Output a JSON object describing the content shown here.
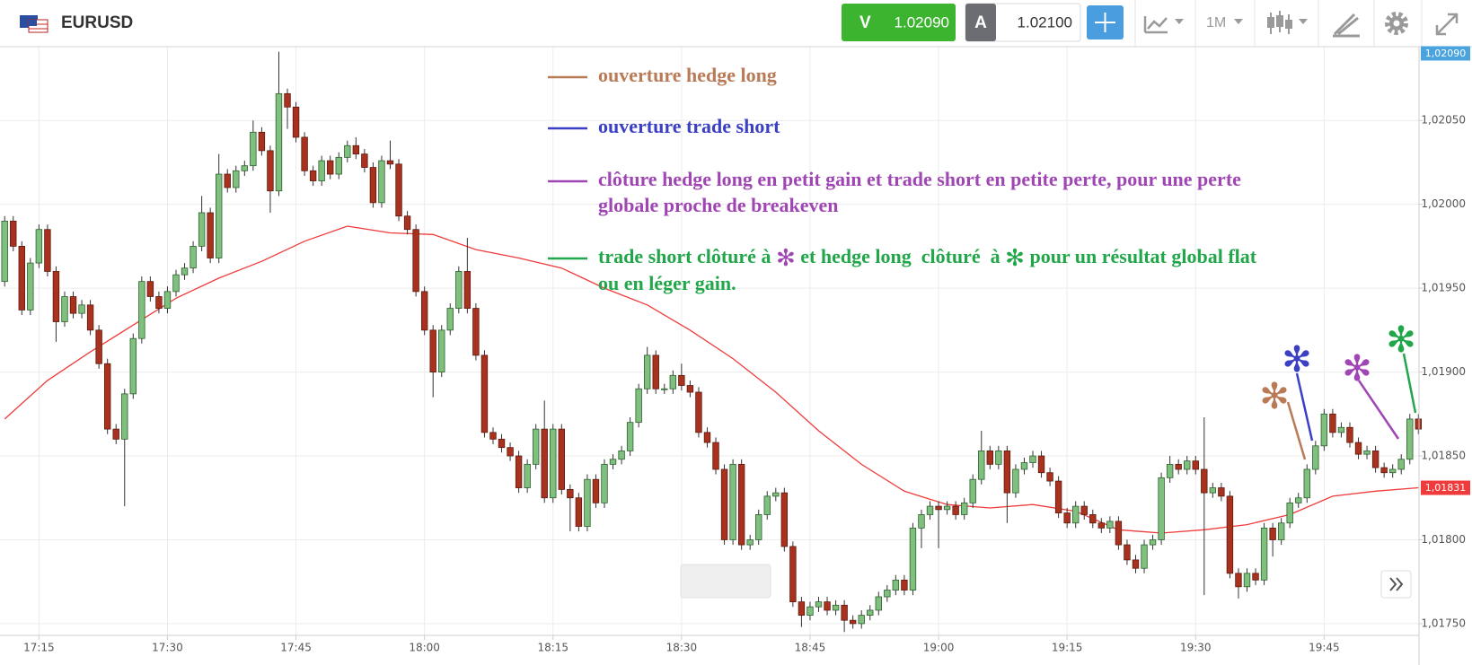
{
  "header": {
    "symbol": "EURUSD",
    "sell_label": "V",
    "sell_price": "1.02090",
    "buy_label": "A",
    "buy_price": "1.02100",
    "timeframe": "1M"
  },
  "chart_data": {
    "type": "candlestick",
    "up_color": "#7fc07f",
    "down_color": "#a9321f",
    "grid": true,
    "marker": "✻",
    "x": [
      "17:11",
      "17:12",
      "17:13",
      "17:14",
      "17:15",
      "17:16",
      "17:17",
      "17:18",
      "17:19",
      "17:20",
      "17:21",
      "17:22",
      "17:23",
      "17:24",
      "17:25",
      "17:26",
      "17:27",
      "17:28",
      "17:29",
      "17:30",
      "17:31",
      "17:32",
      "17:33",
      "17:34",
      "17:35",
      "17:36",
      "17:37",
      "17:38",
      "17:39",
      "17:40",
      "17:41",
      "17:42",
      "17:43",
      "17:44",
      "17:45",
      "17:46",
      "17:47",
      "17:48",
      "17:49",
      "17:50",
      "17:51",
      "17:52",
      "17:53",
      "17:54",
      "17:55",
      "17:56",
      "17:57",
      "17:58",
      "17:59",
      "18:00",
      "18:01",
      "18:02",
      "18:03",
      "18:04",
      "18:05",
      "18:06",
      "18:07",
      "18:08",
      "18:09",
      "18:10",
      "18:11",
      "18:12",
      "18:13",
      "18:14",
      "18:15",
      "18:16",
      "18:17",
      "18:18",
      "18:19",
      "18:20",
      "18:21",
      "18:22",
      "18:23",
      "18:24",
      "18:25",
      "18:26",
      "18:27",
      "18:28",
      "18:29",
      "18:30",
      "18:31",
      "18:32",
      "18:33",
      "18:34",
      "18:35",
      "18:36",
      "18:37",
      "18:38",
      "18:39",
      "18:40",
      "18:41",
      "18:42",
      "18:43",
      "18:44",
      "18:45",
      "18:46",
      "18:47",
      "18:48",
      "18:49",
      "18:50",
      "18:51",
      "18:52",
      "18:53",
      "18:54",
      "18:55",
      "18:56",
      "18:57",
      "18:58",
      "18:59",
      "19:00",
      "19:01",
      "19:02",
      "19:03",
      "19:04",
      "19:05",
      "19:06",
      "19:07",
      "19:08",
      "19:09",
      "19:10",
      "19:11",
      "19:12",
      "19:13",
      "19:14",
      "19:15",
      "19:16",
      "19:17",
      "19:18",
      "19:19",
      "19:20",
      "19:21",
      "19:22",
      "19:23",
      "19:24",
      "19:25",
      "19:26",
      "19:27",
      "19:28",
      "19:29",
      "19:30",
      "19:31",
      "19:32",
      "19:33",
      "19:34",
      "19:35",
      "19:36",
      "19:37",
      "19:38",
      "19:39",
      "19:40",
      "19:41",
      "19:42",
      "19:43",
      "19:44",
      "19:45",
      "19:46",
      "19:47",
      "19:48",
      "19:49",
      "19:50",
      "19:51",
      "19:52",
      "19:53",
      "19:54",
      "19:55",
      "19:56"
    ],
    "open": [
      1.01954,
      1.0199,
      1.01975,
      1.01937,
      1.01965,
      1.01985,
      1.0196,
      1.0193,
      1.01945,
      1.01935,
      1.0194,
      1.01925,
      1.01905,
      1.01866,
      1.0186,
      1.01887,
      1.0192,
      1.01954,
      1.01945,
      1.01938,
      1.01948,
      1.01958,
      1.01962,
      1.01975,
      1.01995,
      1.01968,
      1.02018,
      1.0201,
      1.0202,
      1.02023,
      1.02043,
      1.02032,
      1.02008,
      1.02066,
      1.02058,
      1.0204,
      1.0202,
      1.02014,
      1.02026,
      1.02018,
      1.02028,
      1.02035,
      1.0203,
      1.02022,
      1.02001,
      1.02026,
      1.02024,
      1.01993,
      1.01985,
      1.01948,
      1.01925,
      1.019,
      1.01925,
      1.01938,
      1.0196,
      1.01938,
      1.0191,
      1.01864,
      1.0186,
      1.01855,
      1.0185,
      1.01831,
      1.01845,
      1.01866,
      1.01825,
      1.01866,
      1.0183,
      1.01825,
      1.01808,
      1.01836,
      1.01822,
      1.01845,
      1.01848,
      1.01853,
      1.0187,
      1.0189,
      1.0191,
      1.0189,
      1.0189,
      1.01898,
      1.01892,
      1.01888,
      1.01864,
      1.01858,
      1.01842,
      1.018,
      1.01845,
      1.01797,
      1.018,
      1.01815,
      1.01826,
      1.01828,
      1.01796,
      1.01763,
      1.01755,
      1.0176,
      1.01763,
      1.01758,
      1.01761,
      1.01752,
      1.0175,
      1.01755,
      1.01758,
      1.01766,
      1.0177,
      1.01776,
      1.0177,
      1.01807,
      1.01815,
      1.0182,
      1.01818,
      1.0182,
      1.01815,
      1.01822,
      1.01836,
      1.01853,
      1.01845,
      1.01853,
      1.01828,
      1.01842,
      1.01846,
      1.0185,
      1.0184,
      1.01835,
      1.01816,
      1.0181,
      1.0182,
      1.01815,
      1.0181,
      1.01807,
      1.01811,
      1.01797,
      1.01788,
      1.01783,
      1.01797,
      1.018,
      1.01837,
      1.01845,
      1.01842,
      1.01847,
      1.01842,
      1.01828,
      1.01831,
      1.01826,
      1.0178,
      1.01772,
      1.0178,
      1.01776,
      1.01807,
      1.018,
      1.0181,
      1.01822,
      1.01825,
      1.01842,
      1.01856,
      1.01875,
      1.01864,
      1.01867,
      1.01858,
      1.01851,
      1.01853,
      1.01843,
      1.0184,
      1.01842,
      1.01848,
      1.01872
    ],
    "high": [
      1.01993,
      1.01993,
      1.01978,
      1.01968,
      1.01988,
      1.01988,
      1.01963,
      1.01948,
      1.01948,
      1.01943,
      1.01943,
      1.01928,
      1.01908,
      1.01869,
      1.0189,
      1.01923,
      1.01957,
      1.01957,
      1.01948,
      1.01951,
      1.01961,
      1.01965,
      1.01978,
      1.02005,
      1.01998,
      1.0203,
      1.02021,
      1.02023,
      1.02026,
      1.0205,
      1.02046,
      1.02035,
      1.02091,
      1.02069,
      1.02061,
      1.02043,
      1.02023,
      1.02029,
      1.02029,
      1.02031,
      1.02038,
      1.0204,
      1.02033,
      1.02025,
      1.02029,
      1.02038,
      1.02027,
      1.01996,
      1.01988,
      1.01951,
      1.01928,
      1.01928,
      1.01941,
      1.01963,
      1.0198,
      1.01941,
      1.01913,
      1.01867,
      1.01863,
      1.01858,
      1.01853,
      1.01848,
      1.01869,
      1.01883,
      1.01869,
      1.01869,
      1.01833,
      1.01828,
      1.01839,
      1.01839,
      1.01848,
      1.01851,
      1.01856,
      1.01873,
      1.01893,
      1.01915,
      1.01913,
      1.01893,
      1.01901,
      1.01905,
      1.01895,
      1.01891,
      1.01867,
      1.01861,
      1.01845,
      1.01848,
      1.01848,
      1.01803,
      1.01818,
      1.01829,
      1.01831,
      1.01831,
      1.01799,
      1.01766,
      1.01763,
      1.01766,
      1.01766,
      1.01764,
      1.01764,
      1.01755,
      1.01758,
      1.01761,
      1.01769,
      1.01773,
      1.01779,
      1.01779,
      1.0181,
      1.01818,
      1.01823,
      1.01823,
      1.01823,
      1.01823,
      1.01825,
      1.01839,
      1.01865,
      1.01856,
      1.01856,
      1.01856,
      1.01845,
      1.01849,
      1.01853,
      1.01853,
      1.01843,
      1.01838,
      1.01819,
      1.01823,
      1.01823,
      1.01818,
      1.01813,
      1.01814,
      1.01814,
      1.018,
      1.01791,
      1.018,
      1.01803,
      1.0184,
      1.0185,
      1.01848,
      1.0185,
      1.0185,
      1.01873,
      1.01834,
      1.01834,
      1.01829,
      1.01783,
      1.01783,
      1.01783,
      1.0181,
      1.0181,
      1.01813,
      1.01825,
      1.01828,
      1.01845,
      1.01859,
      1.01878,
      1.01878,
      1.0187,
      1.0187,
      1.01861,
      1.01856,
      1.01856,
      1.01846,
      1.01845,
      1.01851,
      1.01875,
      1.01875
    ],
    "low": [
      1.01951,
      1.01972,
      1.01934,
      1.01934,
      1.01962,
      1.01957,
      1.01918,
      1.01927,
      1.01932,
      1.01932,
      1.01922,
      1.01902,
      1.01863,
      1.01857,
      1.0182,
      1.01884,
      1.01917,
      1.01942,
      1.01935,
      1.01935,
      1.01945,
      1.01955,
      1.01959,
      1.01972,
      1.01965,
      1.01965,
      1.02007,
      1.02007,
      1.02017,
      1.0202,
      1.02029,
      1.01995,
      1.02005,
      1.02045,
      1.02037,
      1.02017,
      1.02011,
      1.02011,
      1.02015,
      1.02015,
      1.02025,
      1.02027,
      1.02019,
      1.01998,
      1.01998,
      1.02021,
      1.0199,
      1.01982,
      1.01945,
      1.01922,
      1.01885,
      1.01897,
      1.01922,
      1.01935,
      1.01935,
      1.01907,
      1.01861,
      1.01857,
      1.01852,
      1.01847,
      1.01828,
      1.01828,
      1.01842,
      1.01822,
      1.01822,
      1.01827,
      1.01805,
      1.01805,
      1.01805,
      1.01819,
      1.01819,
      1.01842,
      1.01845,
      1.0185,
      1.01867,
      1.01887,
      1.01887,
      1.01887,
      1.01887,
      1.01889,
      1.01885,
      1.01861,
      1.01855,
      1.01839,
      1.01797,
      1.01797,
      1.01794,
      1.01794,
      1.01797,
      1.01812,
      1.01823,
      1.01793,
      1.0176,
      1.01748,
      1.01752,
      1.01757,
      1.01755,
      1.01755,
      1.01745,
      1.01747,
      1.01747,
      1.01752,
      1.01755,
      1.01763,
      1.01767,
      1.01767,
      1.01767,
      1.01795,
      1.01812,
      1.01795,
      1.01815,
      1.01812,
      1.01812,
      1.01819,
      1.01833,
      1.01842,
      1.01842,
      1.0181,
      1.01825,
      1.01839,
      1.01843,
      1.01837,
      1.01832,
      1.01813,
      1.01807,
      1.01807,
      1.01812,
      1.01807,
      1.01804,
      1.01804,
      1.01794,
      1.01785,
      1.0178,
      1.0178,
      1.01794,
      1.01797,
      1.01834,
      1.01839,
      1.01839,
      1.01839,
      1.01767,
      1.01825,
      1.01823,
      1.01777,
      1.01765,
      1.01769,
      1.01773,
      1.01773,
      1.0179,
      1.01797,
      1.01807,
      1.01819,
      1.01822,
      1.01839,
      1.01853,
      1.01861,
      1.01861,
      1.01855,
      1.01848,
      1.01848,
      1.0184,
      1.01837,
      1.01837,
      1.01839,
      1.01845,
      1.01863
    ],
    "close": [
      1.0199,
      1.01975,
      1.01937,
      1.01965,
      1.01985,
      1.0196,
      1.0193,
      1.01945,
      1.01935,
      1.0194,
      1.01925,
      1.01905,
      1.01866,
      1.0186,
      1.01887,
      1.0192,
      1.01954,
      1.01945,
      1.01938,
      1.01948,
      1.01958,
      1.01962,
      1.01975,
      1.01995,
      1.01968,
      1.02018,
      1.0201,
      1.0202,
      1.02023,
      1.02043,
      1.02032,
      1.02008,
      1.02066,
      1.02058,
      1.0204,
      1.0202,
      1.02014,
      1.02026,
      1.02018,
      1.02028,
      1.02035,
      1.0203,
      1.02022,
      1.02001,
      1.02026,
      1.02024,
      1.01993,
      1.01985,
      1.01948,
      1.01925,
      1.019,
      1.01925,
      1.01938,
      1.0196,
      1.01938,
      1.0191,
      1.01864,
      1.0186,
      1.01855,
      1.0185,
      1.01831,
      1.01845,
      1.01866,
      1.01825,
      1.01866,
      1.0183,
      1.01825,
      1.01808,
      1.01836,
      1.01822,
      1.01845,
      1.01848,
      1.01853,
      1.0187,
      1.0189,
      1.0191,
      1.0189,
      1.0189,
      1.01898,
      1.01892,
      1.01888,
      1.01864,
      1.01858,
      1.01842,
      1.018,
      1.01845,
      1.01797,
      1.018,
      1.01815,
      1.01826,
      1.01828,
      1.01796,
      1.01763,
      1.01755,
      1.0176,
      1.01763,
      1.01758,
      1.01761,
      1.01752,
      1.0175,
      1.01755,
      1.01758,
      1.01766,
      1.0177,
      1.01776,
      1.0177,
      1.01807,
      1.01815,
      1.0182,
      1.01818,
      1.0182,
      1.01815,
      1.01822,
      1.01836,
      1.01853,
      1.01845,
      1.01853,
      1.01828,
      1.01842,
      1.01846,
      1.0185,
      1.0184,
      1.01835,
      1.01816,
      1.0181,
      1.0182,
      1.01815,
      1.0181,
      1.01807,
      1.01811,
      1.01797,
      1.01788,
      1.01783,
      1.01797,
      1.018,
      1.01837,
      1.01845,
      1.01842,
      1.01847,
      1.01842,
      1.01828,
      1.01831,
      1.01826,
      1.0178,
      1.01772,
      1.0178,
      1.01776,
      1.01807,
      1.018,
      1.0181,
      1.01822,
      1.01825,
      1.01842,
      1.01856,
      1.01875,
      1.01864,
      1.01867,
      1.01858,
      1.01851,
      1.01853,
      1.01843,
      1.0184,
      1.01842,
      1.01848,
      1.01872,
      1.01866
    ],
    "moving_average": {
      "color": "#ef3b3b",
      "x": [
        "17:11",
        "17:16",
        "17:21",
        "17:26",
        "17:31",
        "17:36",
        "17:41",
        "17:46",
        "17:51",
        "17:56",
        "18:01",
        "18:06",
        "18:11",
        "18:16",
        "18:21",
        "18:26",
        "18:31",
        "18:36",
        "18:41",
        "18:46",
        "18:51",
        "18:56",
        "19:01",
        "19:06",
        "19:11",
        "19:16",
        "19:21",
        "19:26",
        "19:31",
        "19:36",
        "19:41",
        "19:46",
        "19:51",
        "19:56"
      ],
      "values": [
        1.01872,
        1.01895,
        1.01912,
        1.01928,
        1.01944,
        1.01956,
        1.01966,
        1.01978,
        1.01987,
        1.01983,
        1.01982,
        1.01973,
        1.01968,
        1.01962,
        1.0195,
        1.0194,
        1.01925,
        1.01908,
        1.01888,
        1.01865,
        1.01845,
        1.01829,
        1.01821,
        1.01819,
        1.01821,
        1.01817,
        1.01806,
        1.01804,
        1.01806,
        1.01809,
        1.01815,
        1.01826,
        1.01829,
        1.01831
      ],
      "last_label": {
        "value": 1.01831,
        "label": "1,01831"
      }
    },
    "current_price": {
      "value": 1.0209,
      "label": "1,02090",
      "color": "#4aa3df"
    },
    "ylim": [
      1.01743,
      1.02094
    ],
    "yticks": [
      {
        "value": 1.0175,
        "label": "1,01750"
      },
      {
        "value": 1.018,
        "label": "1,01800"
      },
      {
        "value": 1.0185,
        "label": "1,01850"
      },
      {
        "value": 1.019,
        "label": "1,01900"
      },
      {
        "value": 1.0195,
        "label": "1,01950"
      },
      {
        "value": 1.02,
        "label": "1,02000"
      },
      {
        "value": 1.0205,
        "label": "1,02050"
      }
    ],
    "xticks": [
      "17:15",
      "17:30",
      "17:45",
      "18:00",
      "18:15",
      "18:30",
      "18:45",
      "19:00",
      "19:15",
      "19:30",
      "19:45"
    ],
    "annotations": [
      {
        "color": "#b97a56",
        "lines": [
          [
            {
              "text": "ouverture hedge long"
            }
          ]
        ]
      },
      {
        "color": "#3a3fc4",
        "lines": [
          [
            {
              "text": "ouverture trade short"
            }
          ]
        ]
      },
      {
        "color": "#a046b4",
        "lines": [
          [
            {
              "text": "clôture hedge long en petit gain et trade short en petite perte, pour une perte"
            }
          ],
          [
            {
              "text": "globale proche de breakeven"
            }
          ]
        ]
      },
      {
        "color": "#21a64a",
        "lines": [
          [
            {
              "text": "trade short clôturé à "
            },
            {
              "text": "✻",
              "color": "#a046b4"
            },
            {
              "text": " et hedge long  clôturé  à "
            },
            {
              "text": "✻",
              "color": "#21a64a"
            },
            {
              "text": " pour un résultat global flat"
            }
          ],
          [
            {
              "text": "ou en léger gain."
            }
          ]
        ]
      }
    ]
  }
}
